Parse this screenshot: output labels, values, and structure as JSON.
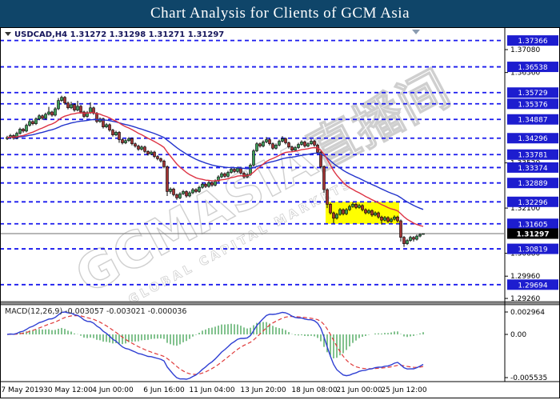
{
  "title": "Chart Analysis for Clients of GCM Asia",
  "quote": {
    "symbol": "USDCAD,H4",
    "open": "1.31272",
    "high": "1.31298",
    "low": "1.31271",
    "close": "1.31297"
  },
  "watermark": {
    "main": "GCMASIA直播间",
    "sub": "GLOBAL CAPITAL MARKETS"
  },
  "price_axis": {
    "plain_ticks": [
      1.3708,
      1.3636,
      1.3352,
      1.321,
      1.3068,
      1.2996,
      1.2926
    ],
    "current_price_label": "1.31297"
  },
  "time_axis": {
    "labels": [
      {
        "text": "27 May 2019",
        "i": 4
      },
      {
        "text": "30 May 12:00",
        "i": 19
      },
      {
        "text": "4 Jun 00:00",
        "i": 33
      },
      {
        "text": "6 Jun 16:00",
        "i": 49
      },
      {
        "text": "11 Jun 04:00",
        "i": 64
      },
      {
        "text": "13 Jun 20:00",
        "i": 80
      },
      {
        "text": "18 Jun 08:00",
        "i": 96
      },
      {
        "text": "21 Jun 00:00",
        "i": 110
      },
      {
        "text": "25 Jun 12:00",
        "i": 124
      }
    ]
  },
  "macd_panel": {
    "label": "MACD(12,26,9)",
    "values": [
      "-0.003057",
      "-0.003021",
      "-0.000036"
    ],
    "scale_max": "0.002964",
    "scale_zero": "0.00",
    "scale_min": "-0.005535"
  },
  "colors": {
    "titlebar": "#0f4569",
    "level_line": "#1a1aee",
    "level_label_bg": "#1d1dcf",
    "bull": "#3c9a57",
    "bear": "#a23434",
    "candle_outline": "#000000",
    "ma_fast": "#dd3344",
    "ma_slow": "#2233cc",
    "macd_line": "#2f3fd3",
    "macd_signal": "#e03a3a",
    "macd_hist": "#2e9942",
    "highlight_zone": "#ffff00",
    "current_price_line": "#6f6f6f",
    "watermark": "#cfcfcf"
  },
  "chart_data": {
    "type": "candlestick",
    "symbol": "USDCAD",
    "timeframe": "H4",
    "title": "USDCAD H4 with blue dashed support/resistance levels, two EMAs and MACD(12,26,9)",
    "x_range": [
      "27 May 2019",
      "26 Jun 2019"
    ],
    "y_axis": {
      "min": 1.2916,
      "max": 1.3753
    },
    "levels": [
      1.37366,
      1.36538,
      1.35729,
      1.35376,
      1.34887,
      1.34296,
      1.33781,
      1.33374,
      1.32889,
      1.32296,
      1.31605,
      1.30819,
      1.29694
    ],
    "current_price": 1.31297,
    "highlight_zone": {
      "price_top": 1.32296,
      "price_bottom": 1.31605,
      "start_index": 100,
      "end_index": 122
    },
    "indicators": {
      "ma_fast": {
        "type": "ema",
        "period": 18
      },
      "ma_slow": {
        "type": "ema",
        "period": 40
      },
      "macd": {
        "fast": 12,
        "slow": 26,
        "signal": 9
      }
    },
    "candles": [
      [
        1.3428,
        1.3437,
        1.3424,
        1.3432
      ],
      [
        1.3432,
        1.3443,
        1.3428,
        1.3438
      ],
      [
        1.3438,
        1.3442,
        1.3425,
        1.343
      ],
      [
        1.343,
        1.345,
        1.3426,
        1.3445
      ],
      [
        1.3445,
        1.3463,
        1.3441,
        1.3458
      ],
      [
        1.3458,
        1.3462,
        1.3447,
        1.3452
      ],
      [
        1.3452,
        1.3475,
        1.3448,
        1.347
      ],
      [
        1.347,
        1.3487,
        1.3466,
        1.3482
      ],
      [
        1.3482,
        1.3486,
        1.347,
        1.3475
      ],
      [
        1.3475,
        1.3495,
        1.3471,
        1.349
      ],
      [
        1.349,
        1.3505,
        1.3486,
        1.35
      ],
      [
        1.35,
        1.3504,
        1.3487,
        1.3492
      ],
      [
        1.3492,
        1.351,
        1.3488,
        1.3505
      ],
      [
        1.3505,
        1.3528,
        1.3501,
        1.3512
      ],
      [
        1.3512,
        1.3516,
        1.3497,
        1.3502
      ],
      [
        1.3502,
        1.3527,
        1.3498,
        1.3522
      ],
      [
        1.3522,
        1.3556,
        1.3518,
        1.3548
      ],
      [
        1.3548,
        1.3563,
        1.3544,
        1.3558
      ],
      [
        1.3558,
        1.3562,
        1.3535,
        1.354
      ],
      [
        1.354,
        1.3545,
        1.352,
        1.3525
      ],
      [
        1.3525,
        1.3544,
        1.3521,
        1.3535
      ],
      [
        1.3535,
        1.3539,
        1.3513,
        1.3518
      ],
      [
        1.3518,
        1.3547,
        1.3514,
        1.353
      ],
      [
        1.353,
        1.3534,
        1.3507,
        1.3512
      ],
      [
        1.3512,
        1.3516,
        1.3493,
        1.3498
      ],
      [
        1.3498,
        1.3515,
        1.3494,
        1.351
      ],
      [
        1.351,
        1.3542,
        1.3506,
        1.3525
      ],
      [
        1.3525,
        1.3529,
        1.3503,
        1.3508
      ],
      [
        1.3508,
        1.3512,
        1.3477,
        1.3482
      ],
      [
        1.3482,
        1.3495,
        1.3478,
        1.349
      ],
      [
        1.349,
        1.3494,
        1.346,
        1.3465
      ],
      [
        1.3465,
        1.3477,
        1.3461,
        1.3472
      ],
      [
        1.3472,
        1.3476,
        1.345,
        1.3455
      ],
      [
        1.3455,
        1.3459,
        1.3435,
        1.344
      ],
      [
        1.344,
        1.3453,
        1.3436,
        1.3448
      ],
      [
        1.3448,
        1.3452,
        1.3415,
        1.3425
      ],
      [
        1.3425,
        1.3429,
        1.341,
        1.3415
      ],
      [
        1.3415,
        1.3427,
        1.3411,
        1.3422
      ],
      [
        1.3422,
        1.3433,
        1.3418,
        1.3428
      ],
      [
        1.3428,
        1.3432,
        1.3407,
        1.3412
      ],
      [
        1.3412,
        1.3416,
        1.34,
        1.3405
      ],
      [
        1.3405,
        1.3409,
        1.339,
        1.3395
      ],
      [
        1.3395,
        1.3407,
        1.3391,
        1.3402
      ],
      [
        1.3402,
        1.3406,
        1.3383,
        1.3388
      ],
      [
        1.3388,
        1.3392,
        1.3375,
        1.338
      ],
      [
        1.338,
        1.3391,
        1.3376,
        1.3386
      ],
      [
        1.3386,
        1.339,
        1.3367,
        1.3372
      ],
      [
        1.3372,
        1.3376,
        1.336,
        1.3365
      ],
      [
        1.3365,
        1.3369,
        1.3353,
        1.3358
      ],
      [
        1.3358,
        1.3362,
        1.3335,
        1.334
      ],
      [
        1.334,
        1.3344,
        1.3248,
        1.3262
      ],
      [
        1.3262,
        1.3275,
        1.3255,
        1.327
      ],
      [
        1.327,
        1.3274,
        1.3247,
        1.3252
      ],
      [
        1.3252,
        1.3256,
        1.3236,
        1.3242
      ],
      [
        1.3242,
        1.326,
        1.3238,
        1.3255
      ],
      [
        1.3255,
        1.3267,
        1.3251,
        1.3262
      ],
      [
        1.3262,
        1.3266,
        1.3243,
        1.3248
      ],
      [
        1.3248,
        1.3263,
        1.3244,
        1.3258
      ],
      [
        1.3258,
        1.3273,
        1.3254,
        1.3268
      ],
      [
        1.3268,
        1.3272,
        1.3257,
        1.3262
      ],
      [
        1.3262,
        1.328,
        1.3258,
        1.3275
      ],
      [
        1.3275,
        1.329,
        1.3271,
        1.3285
      ],
      [
        1.3285,
        1.3289,
        1.3273,
        1.3278
      ],
      [
        1.3278,
        1.3295,
        1.3274,
        1.329
      ],
      [
        1.329,
        1.3294,
        1.3277,
        1.3282
      ],
      [
        1.3282,
        1.33,
        1.3278,
        1.3295
      ],
      [
        1.3295,
        1.3313,
        1.3291,
        1.3308
      ],
      [
        1.3308,
        1.3323,
        1.3304,
        1.3318
      ],
      [
        1.3318,
        1.3322,
        1.3305,
        1.331
      ],
      [
        1.331,
        1.3327,
        1.3306,
        1.3322
      ],
      [
        1.3322,
        1.3337,
        1.3318,
        1.3332
      ],
      [
        1.3332,
        1.3336,
        1.332,
        1.3325
      ],
      [
        1.3325,
        1.334,
        1.3321,
        1.3335
      ],
      [
        1.3335,
        1.3339,
        1.3315,
        1.332
      ],
      [
        1.332,
        1.3324,
        1.3303,
        1.3308
      ],
      [
        1.3308,
        1.332,
        1.3304,
        1.3315
      ],
      [
        1.3315,
        1.335,
        1.3311,
        1.3345
      ],
      [
        1.3345,
        1.3395,
        1.3341,
        1.339
      ],
      [
        1.339,
        1.3417,
        1.3386,
        1.3412
      ],
      [
        1.3412,
        1.3416,
        1.34,
        1.3405
      ],
      [
        1.3405,
        1.3423,
        1.3401,
        1.3418
      ],
      [
        1.3418,
        1.3433,
        1.3414,
        1.3425
      ],
      [
        1.3425,
        1.3429,
        1.3407,
        1.3412
      ],
      [
        1.3412,
        1.3416,
        1.3393,
        1.3398
      ],
      [
        1.3398,
        1.3413,
        1.3394,
        1.3408
      ],
      [
        1.3408,
        1.3425,
        1.3404,
        1.342
      ],
      [
        1.342,
        1.3436,
        1.3416,
        1.3428
      ],
      [
        1.3428,
        1.3432,
        1.341,
        1.3415
      ],
      [
        1.3415,
        1.3419,
        1.3397,
        1.3402
      ],
      [
        1.3402,
        1.3406,
        1.3387,
        1.3392
      ],
      [
        1.3392,
        1.3405,
        1.3388,
        1.34
      ],
      [
        1.34,
        1.3415,
        1.3396,
        1.341
      ],
      [
        1.341,
        1.3423,
        1.3406,
        1.3418
      ],
      [
        1.3418,
        1.3422,
        1.34,
        1.3405
      ],
      [
        1.3405,
        1.3417,
        1.3401,
        1.3412
      ],
      [
        1.3412,
        1.3427,
        1.3408,
        1.342
      ],
      [
        1.342,
        1.3424,
        1.3403,
        1.3408
      ],
      [
        1.3408,
        1.3412,
        1.338,
        1.3385
      ],
      [
        1.3385,
        1.3389,
        1.3335,
        1.334
      ],
      [
        1.334,
        1.3344,
        1.3258,
        1.3268
      ],
      [
        1.3268,
        1.3272,
        1.321,
        1.3222
      ],
      [
        1.3222,
        1.3226,
        1.319,
        1.3195
      ],
      [
        1.3195,
        1.3199,
        1.3162,
        1.3178
      ],
      [
        1.3178,
        1.3195,
        1.3174,
        1.319
      ],
      [
        1.319,
        1.321,
        1.3186,
        1.3205
      ],
      [
        1.3205,
        1.3209,
        1.3187,
        1.3192
      ],
      [
        1.3192,
        1.321,
        1.3188,
        1.3205
      ],
      [
        1.3205,
        1.322,
        1.3201,
        1.3215
      ],
      [
        1.3215,
        1.3228,
        1.3211,
        1.3222
      ],
      [
        1.3222,
        1.3226,
        1.3207,
        1.3212
      ],
      [
        1.3212,
        1.3223,
        1.3208,
        1.3218
      ],
      [
        1.3218,
        1.3222,
        1.32,
        1.3205
      ],
      [
        1.3205,
        1.3209,
        1.319,
        1.3195
      ],
      [
        1.3195,
        1.3207,
        1.3191,
        1.3202
      ],
      [
        1.3202,
        1.3206,
        1.3183,
        1.3188
      ],
      [
        1.3188,
        1.32,
        1.3184,
        1.3195
      ],
      [
        1.3195,
        1.3199,
        1.3177,
        1.3182
      ],
      [
        1.3182,
        1.3186,
        1.3158,
        1.3172
      ],
      [
        1.3172,
        1.3185,
        1.3168,
        1.318
      ],
      [
        1.318,
        1.3184,
        1.3163,
        1.3168
      ],
      [
        1.3168,
        1.318,
        1.3164,
        1.3175
      ],
      [
        1.3175,
        1.3187,
        1.3171,
        1.3182
      ],
      [
        1.3182,
        1.3186,
        1.3165,
        1.317
      ],
      [
        1.317,
        1.3174,
        1.3105,
        1.3118
      ],
      [
        1.3118,
        1.3122,
        1.3088,
        1.3098
      ],
      [
        1.3098,
        1.3113,
        1.3094,
        1.3108
      ],
      [
        1.3108,
        1.3123,
        1.3104,
        1.3118
      ],
      [
        1.3118,
        1.3122,
        1.3105,
        1.3112
      ],
      [
        1.3112,
        1.3127,
        1.3108,
        1.3122
      ],
      [
        1.3122,
        1.3131,
        1.3118,
        1.3127
      ],
      [
        1.31272,
        1.31298,
        1.31271,
        1.31297
      ]
    ]
  }
}
